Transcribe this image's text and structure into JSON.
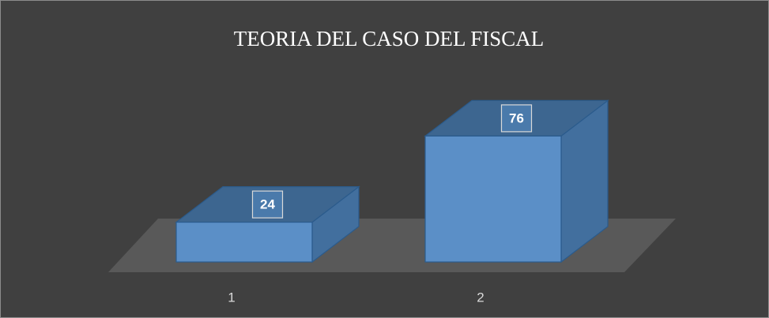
{
  "chart_data": {
    "type": "bar3d",
    "title": "TEORIA DEL CASO DEL FISCAL",
    "categories": [
      "1",
      "2"
    ],
    "values": [
      24,
      76
    ],
    "color": "#5b8fc7"
  }
}
